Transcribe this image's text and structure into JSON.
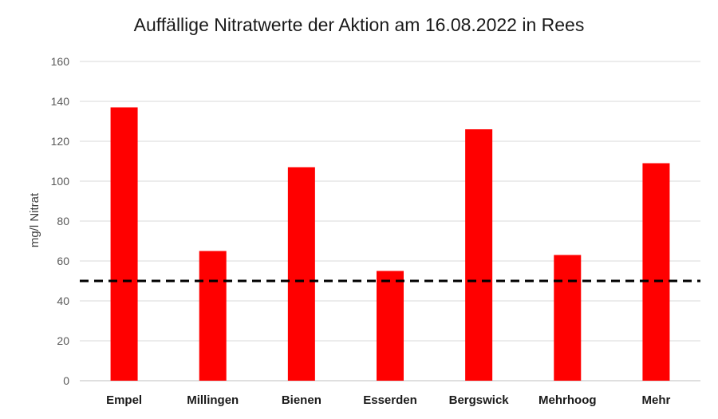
{
  "chart_data": {
    "type": "bar",
    "title": "Auffällige Nitratwerte der Aktion am 16.08.2022 in Rees",
    "xlabel": "",
    "ylabel": "mg/l Nitrat",
    "categories": [
      "Empel",
      "Millingen",
      "Bienen",
      "Esserden",
      "Bergswick",
      "Mehrhoog",
      "Mehr"
    ],
    "values": [
      137,
      65,
      107,
      55,
      126,
      63,
      109
    ],
    "ylim": [
      0,
      160
    ],
    "yticks": [
      "0",
      "20",
      "40",
      "60",
      "80",
      "100",
      "120",
      "140",
      "160"
    ],
    "reference_line": {
      "value": 50,
      "style": "dashed",
      "color": "#000000"
    },
    "grid": true,
    "legend": "none",
    "bar_color": "#ff0000"
  }
}
